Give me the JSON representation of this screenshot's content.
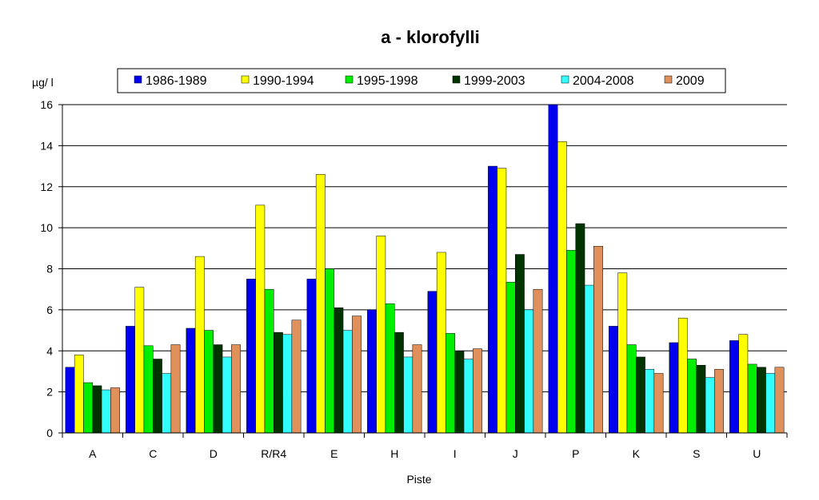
{
  "chart_data": {
    "type": "bar",
    "title": "a - klorofylli",
    "ylabel": "µg/ l",
    "xlabel": "Piste",
    "ylim": [
      0,
      16
    ],
    "yticks": [
      0,
      2,
      4,
      6,
      8,
      10,
      12,
      14,
      16
    ],
    "grid": true,
    "legend_position": "top",
    "categories": [
      "A",
      "C",
      "D",
      "R/R4",
      "E",
      "H",
      "I",
      "J",
      "P",
      "K",
      "S",
      "U"
    ],
    "series": [
      {
        "name": "1986-1989",
        "color": "#0000ee",
        "values": [
          3.2,
          5.2,
          5.1,
          7.5,
          7.5,
          6.0,
          6.9,
          13.0,
          16.0,
          5.2,
          4.4,
          4.5
        ]
      },
      {
        "name": "1990-1994",
        "color": "#ffff00",
        "values": [
          3.8,
          7.1,
          8.6,
          11.1,
          12.6,
          9.6,
          8.8,
          12.9,
          14.2,
          7.8,
          5.6,
          4.8
        ]
      },
      {
        "name": "1995-1998",
        "color": "#00ee00",
        "values": [
          2.45,
          4.25,
          5.0,
          7.0,
          8.0,
          6.3,
          4.85,
          7.35,
          8.9,
          4.3,
          3.6,
          3.35
        ]
      },
      {
        "name": "1999-2003",
        "color": "#003300",
        "values": [
          2.3,
          3.6,
          4.3,
          4.9,
          6.1,
          4.9,
          4.0,
          8.7,
          10.2,
          3.7,
          3.3,
          3.2
        ]
      },
      {
        "name": "2004-2008",
        "color": "#33ffff",
        "values": [
          2.1,
          2.9,
          3.7,
          4.8,
          5.0,
          3.7,
          3.6,
          6.0,
          7.2,
          3.1,
          2.7,
          2.9
        ]
      },
      {
        "name": "2009",
        "color": "#e0905a",
        "values": [
          2.2,
          4.3,
          4.3,
          5.5,
          5.7,
          4.3,
          4.1,
          7.0,
          9.1,
          2.9,
          3.1,
          3.2
        ]
      }
    ]
  }
}
